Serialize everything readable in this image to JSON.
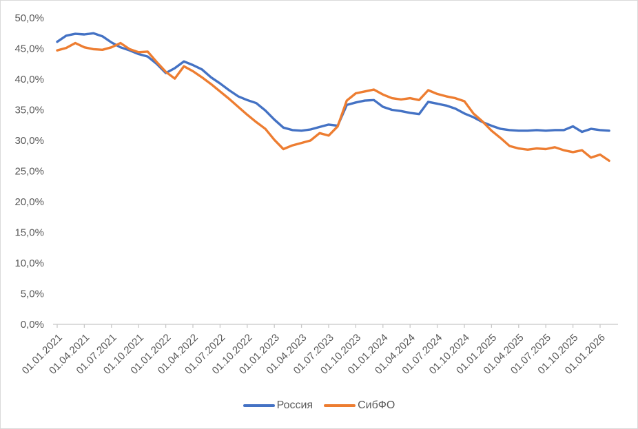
{
  "chart": {
    "background_color": "#ffffff",
    "border_color": "#d9d9d9",
    "axis_line_color": "#c8c8c8",
    "axis_text_color": "#595959",
    "gridlines": false
  },
  "chart_data": {
    "type": "line",
    "title": "",
    "xlabel": "",
    "ylabel": "",
    "ylim": [
      0,
      50
    ],
    "y_unit": "%",
    "y_tick_labels": [
      "0,0%",
      "5,0%",
      "10,0%",
      "15,0%",
      "20,0%",
      "25,0%",
      "30,0%",
      "35,0%",
      "40,0%",
      "45,0%",
      "50,0%"
    ],
    "y_tick_values": [
      0,
      5,
      10,
      15,
      20,
      25,
      30,
      35,
      40,
      45,
      50
    ],
    "x_tick_labels": [
      "01.01.2021",
      "01.04.2021",
      "01.07.2021",
      "01.10.2021",
      "01.01.2022",
      "01.04.2022",
      "01.07.2022",
      "01.10.2022",
      "01.01.2023",
      "01.04.2023",
      "01.07.2023",
      "01.10.2023",
      "01.01.2024",
      "01.04.2024",
      "01.07.2024",
      "01.10.2024",
      "01.01.2025",
      "01.04.2025",
      "01.07.2025",
      "01.10.2025",
      "01.01.2026"
    ],
    "x_frequency": "monthly",
    "months_per_tick": 3,
    "legend_position": "bottom",
    "series": [
      {
        "name": "Россия",
        "color": "#4472C4",
        "values": [
          46.1,
          47.1,
          47.4,
          47.3,
          47.5,
          47.0,
          46.0,
          45.2,
          44.7,
          44.1,
          43.7,
          42.5,
          41.0,
          41.8,
          42.9,
          42.3,
          41.6,
          40.3,
          39.3,
          38.2,
          37.2,
          36.6,
          36.1,
          34.9,
          33.4,
          32.1,
          31.7,
          31.6,
          31.8,
          32.2,
          32.6,
          32.4,
          35.8,
          36.2,
          36.5,
          36.6,
          35.5,
          35.0,
          34.8,
          34.5,
          34.3,
          36.3,
          36.0,
          35.7,
          35.2,
          34.4,
          33.8,
          33.0,
          32.4,
          31.9,
          31.7,
          31.6,
          31.6,
          31.7,
          31.6,
          31.7,
          31.7,
          32.3,
          31.4,
          31.9,
          31.7,
          31.6
        ]
      },
      {
        "name": "СибФО",
        "color": "#ED7D31",
        "values": [
          44.7,
          45.1,
          45.9,
          45.2,
          44.9,
          44.8,
          45.2,
          45.9,
          44.9,
          44.4,
          44.5,
          42.8,
          41.2,
          40.1,
          42.1,
          41.3,
          40.3,
          39.2,
          38.0,
          36.8,
          35.5,
          34.2,
          33.0,
          31.9,
          30.1,
          28.6,
          29.2,
          29.6,
          30.0,
          31.2,
          30.8,
          32.3,
          36.5,
          37.7,
          38.0,
          38.3,
          37.5,
          36.9,
          36.7,
          36.9,
          36.6,
          38.2,
          37.6,
          37.2,
          36.9,
          36.4,
          34.4,
          33.1,
          31.6,
          30.4,
          29.1,
          28.7,
          28.5,
          28.7,
          28.6,
          28.9,
          28.4,
          28.1,
          28.4,
          27.2,
          27.7,
          26.7
        ]
      }
    ]
  },
  "legend": {
    "items": [
      {
        "label": "Россия",
        "color": "#4472C4"
      },
      {
        "label": "СибФО",
        "color": "#ED7D31"
      }
    ]
  }
}
